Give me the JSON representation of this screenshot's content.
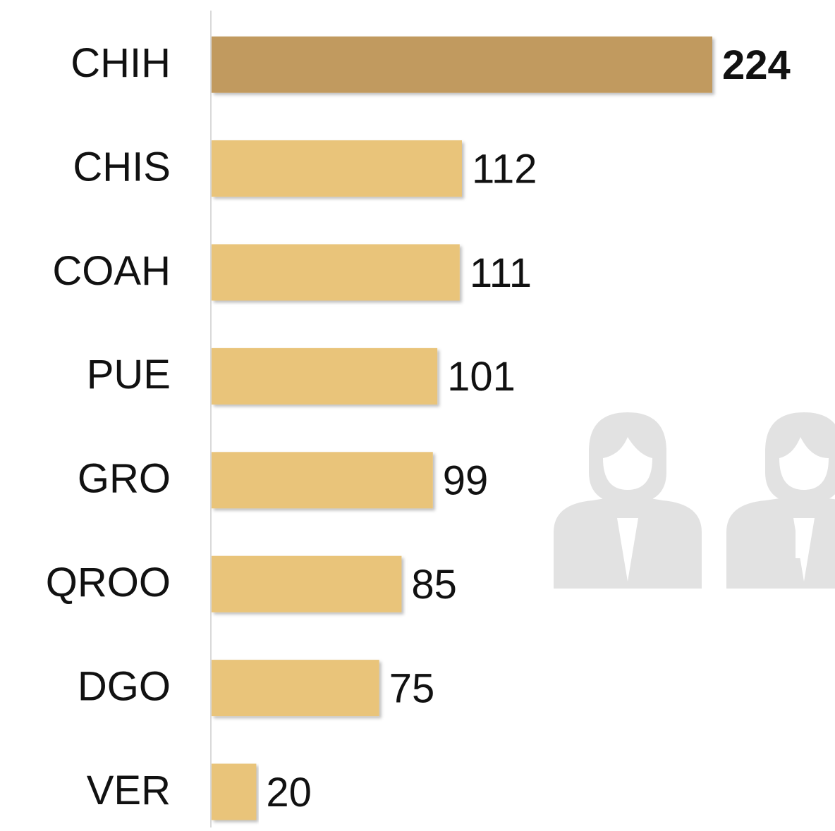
{
  "chart_data": {
    "type": "barh",
    "categories": [
      "CHIH",
      "CHIS",
      "COAH",
      "PUE",
      "GRO",
      "QROO",
      "DGO",
      "VER"
    ],
    "values": [
      224,
      112,
      111,
      101,
      99,
      85,
      75,
      20
    ],
    "colors": [
      "#c19a5f",
      "#e9c47a",
      "#e9c47a",
      "#e9c47a",
      "#e9c47a",
      "#e9c47a",
      "#e9c47a",
      "#e9c47a"
    ],
    "highlight_index": 0
  }
}
